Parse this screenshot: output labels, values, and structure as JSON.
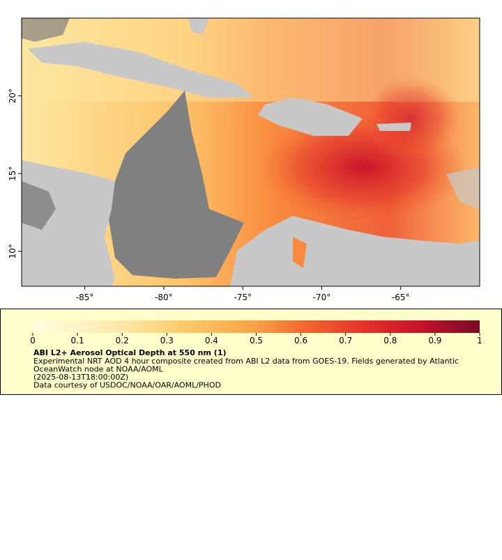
{
  "map": {
    "xlim": [
      -89,
      -60
    ],
    "ylim": [
      7.75,
      25
    ],
    "xticks": [
      {
        "value": -85,
        "label": "-85°"
      },
      {
        "value": -80,
        "label": "-80°"
      },
      {
        "value": -75,
        "label": "-75°"
      },
      {
        "value": -70,
        "label": "-70°"
      },
      {
        "value": -65,
        "label": "-65°"
      }
    ],
    "yticks": [
      {
        "value": 10,
        "label": "10°"
      },
      {
        "value": 15,
        "label": "15°"
      },
      {
        "value": 20,
        "label": "20°"
      }
    ]
  },
  "legend": {
    "colorbar_lim": [
      0,
      1
    ],
    "colorbar_ticks": [
      0,
      0.1,
      0.2,
      0.3,
      0.4,
      0.5,
      0.6,
      0.7,
      0.8,
      0.9,
      1
    ],
    "title": "ABI L2+ Aerosol Optical Depth at 550 nm (1)",
    "lines": [
      "Experimental NRT AOD 4 hour composite created from ABI L2 data from GOES-19. Fields generated by Atlantic",
      "OceanWatch node at NOAA/AOML",
      "(2025-08-13T18:00:00Z)",
      "Data courtesy of USDOC/NOAA/OAR/AOML/PHOD"
    ]
  }
}
